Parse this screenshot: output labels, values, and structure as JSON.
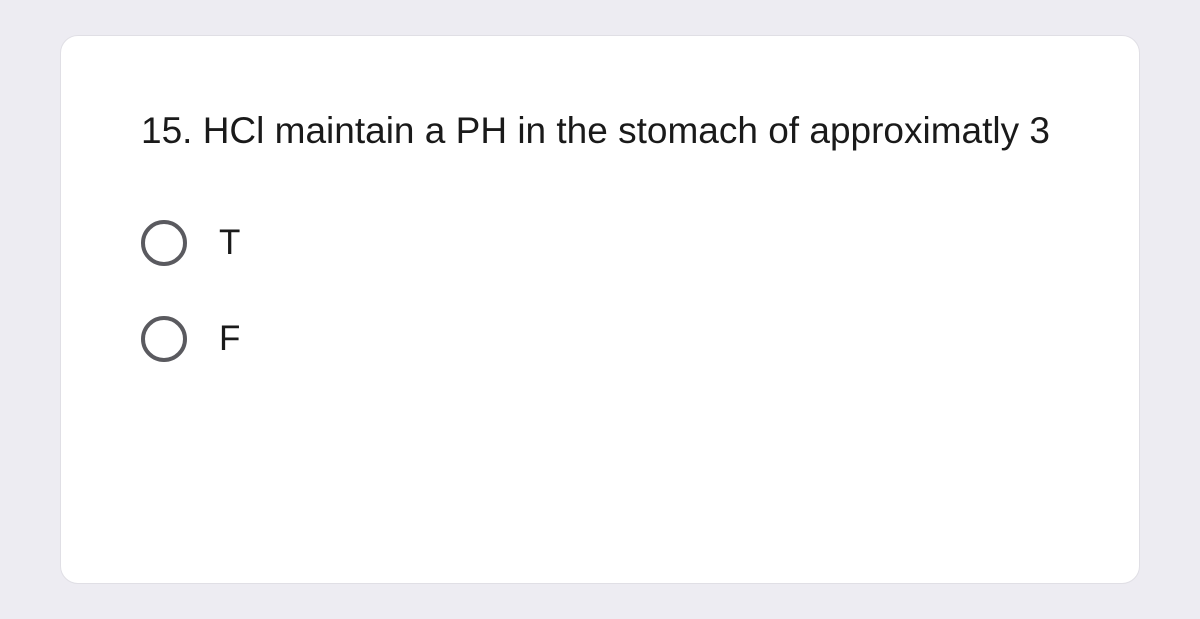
{
  "question": {
    "number": "15.",
    "text": "15. HCl maintain a PH in the stomach of approximatly 3",
    "options": [
      {
        "label": "T",
        "selected": false
      },
      {
        "label": "F",
        "selected": false
      }
    ]
  },
  "styles": {
    "page_background": "#edecf2",
    "card_background": "#ffffff",
    "card_border": "#e0dfe5",
    "card_border_radius": 18,
    "question_fontsize": 37,
    "question_color": "#1a1a1a",
    "radio_border_color": "#5a5a5f",
    "radio_size": 46,
    "radio_border_width": 4,
    "option_label_fontsize": 35,
    "option_label_color": "#1a1a1a"
  }
}
